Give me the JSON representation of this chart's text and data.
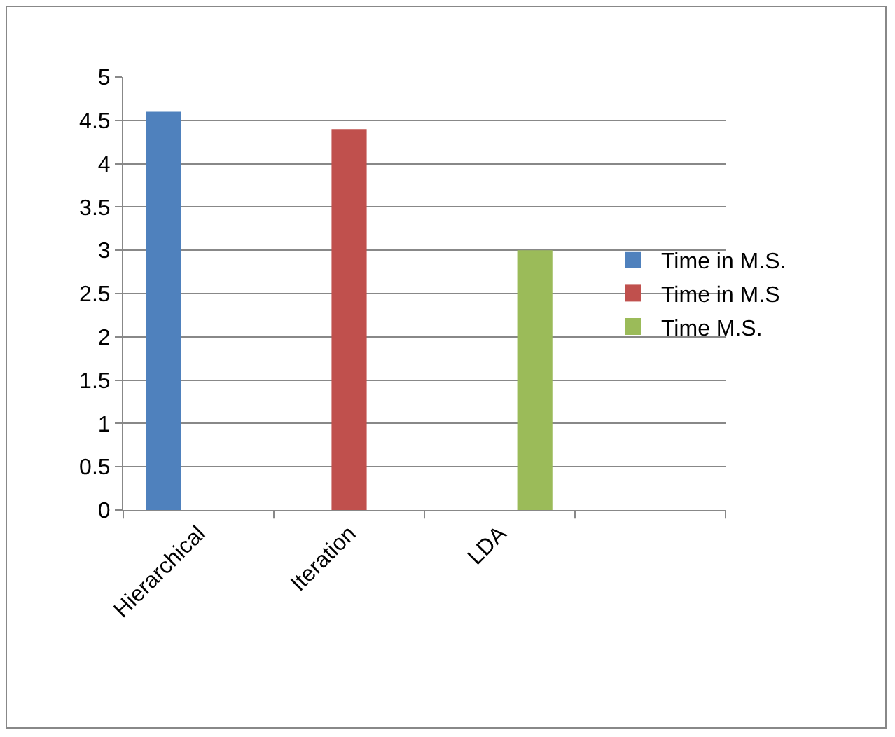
{
  "chart_data": {
    "type": "bar",
    "categories": [
      "Hierarchical",
      "Iteration",
      "LDA",
      null
    ],
    "series": [
      {
        "name": "Time in M.S.",
        "color": "#4f81bd",
        "values": [
          4.6,
          null,
          null,
          null
        ]
      },
      {
        "name": "Time in M.S",
        "color": "#c0504d",
        "values": [
          null,
          4.4,
          null,
          null
        ]
      },
      {
        "name": "Time M.S.",
        "color": "#9bbb59",
        "values": [
          null,
          null,
          3.0,
          null
        ]
      }
    ],
    "ylim": [
      0,
      5
    ],
    "yticks": [
      0,
      0.5,
      1,
      1.5,
      2,
      2.5,
      3,
      3.5,
      4,
      4.5,
      5
    ],
    "grid": "y",
    "legend": "right"
  }
}
